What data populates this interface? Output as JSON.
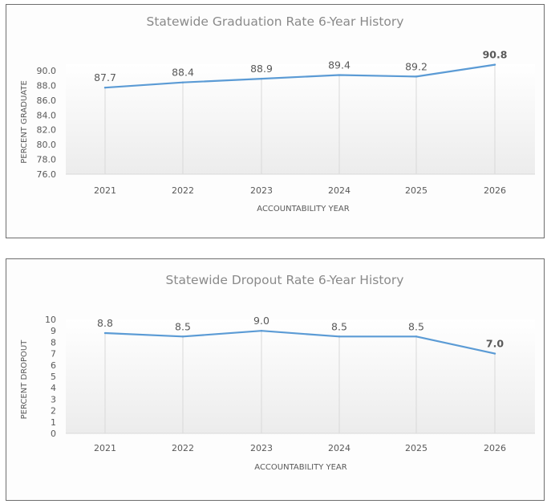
{
  "chart_data": [
    {
      "type": "line",
      "title": "Statewide Graduation Rate 6-Year History",
      "xlabel": "ACCOUNTABILITY YEAR",
      "ylabel": "PERCENT GRADUATE",
      "categories": [
        "2021",
        "2022",
        "2023",
        "2024",
        "2025",
        "2026"
      ],
      "values": [
        87.7,
        88.4,
        88.9,
        89.4,
        89.2,
        90.8
      ],
      "data_labels": [
        "87.7",
        "88.4",
        "88.9",
        "89.4",
        "89.2",
        "90.8"
      ],
      "highlight_last_label": true,
      "ylim": [
        76,
        90
      ],
      "yticks": [
        "76.0",
        "78.0",
        "80.0",
        "82.0",
        "84.0",
        "86.0",
        "88.0",
        "90.0"
      ],
      "ytick_values": [
        76,
        78,
        80,
        82,
        84,
        86,
        88,
        90
      ],
      "grid": "vertical",
      "legend": "none",
      "line_color": "#5b9bd5"
    },
    {
      "type": "line",
      "title": "Statewide Dropout Rate 6-Year History",
      "xlabel": "ACCOUNTABILITY YEAR",
      "ylabel": "PERCENT DROPOUT",
      "categories": [
        "2021",
        "2022",
        "2023",
        "2024",
        "2025",
        "2026"
      ],
      "values": [
        8.8,
        8.5,
        9.0,
        8.5,
        8.5,
        7.0
      ],
      "data_labels": [
        "8.8",
        "8.5",
        "9.0",
        "8.5",
        "8.5",
        "7.0"
      ],
      "highlight_last_label": true,
      "ylim": [
        0,
        10
      ],
      "yticks": [
        "0",
        "1",
        "2",
        "3",
        "4",
        "5",
        "6",
        "7",
        "8",
        "9",
        "10"
      ],
      "ytick_values": [
        0,
        1,
        2,
        3,
        4,
        5,
        6,
        7,
        8,
        9,
        10
      ],
      "grid": "vertical",
      "legend": "none",
      "line_color": "#5b9bd5"
    }
  ]
}
